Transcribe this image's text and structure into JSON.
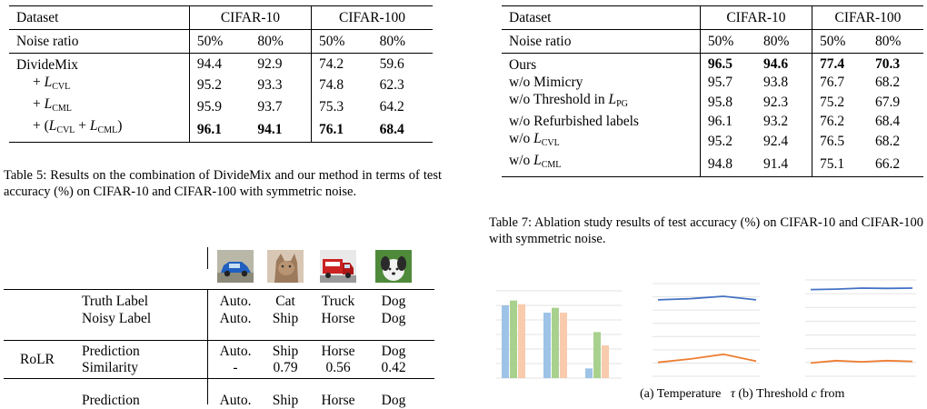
{
  "table5": {
    "h_dataset": "Dataset",
    "h_c10": "CIFAR-10",
    "h_c100": "CIFAR-100",
    "noise_label": "Noise ratio",
    "n1": "50%",
    "n2": "80%",
    "n3": "50%",
    "n4": "80%",
    "rows": [
      {
        "label": "DivideMix",
        "v": [
          "94.4",
          "92.9",
          "74.2",
          "59.6"
        ]
      },
      {
        "label_prefix": "+ ",
        "label_sym": "L",
        "label_sub": "CVL",
        "v": [
          "95.2",
          "93.3",
          "74.8",
          "62.3"
        ]
      },
      {
        "label_prefix": "+ ",
        "label_sym": "L",
        "label_sub": "CML",
        "v": [
          "95.9",
          "93.7",
          "75.3",
          "64.2"
        ]
      },
      {
        "label_prefix": "+ (",
        "label_sym": "L",
        "label_sub": "CVL",
        "label_mid": " + ",
        "label_sym2": "L",
        "label_sub2": "CML",
        "label_suffix": ")",
        "v": [
          "96.1",
          "94.1",
          "76.1",
          "68.4"
        ]
      }
    ],
    "caption": "Table 5: Results on the combination of DivideMix and our method in terms of test accuracy (%) on CIFAR-10 and CIFAR-100 with symmetric noise."
  },
  "table6": {
    "truth_label": "Truth Label",
    "noisy_label": "Noisy Label",
    "truth": [
      "Auto.",
      "Cat",
      "Truck",
      "Dog"
    ],
    "noisy": [
      "Auto.",
      "Ship",
      "Horse",
      "Dog"
    ],
    "rolr": "RoLR",
    "prediction": "Prediction",
    "similarity": "Similarity",
    "pred": [
      "Auto.",
      "Ship",
      "Horse",
      "Dog"
    ],
    "sim": [
      "-",
      "0.79",
      "0.56",
      "0.42"
    ],
    "prediction2": "Prediction",
    "pred2": [
      "Auto.",
      "Ship",
      "Horse",
      "Dog"
    ]
  },
  "table7": {
    "h_dataset": "Dataset",
    "h_c10": "CIFAR-10",
    "h_c100": "CIFAR-100",
    "noise_label": "Noise ratio",
    "n1": "50%",
    "n2": "80%",
    "n3": "50%",
    "n4": "80%",
    "rows": [
      {
        "label": "Ours",
        "v": [
          "96.5",
          "94.6",
          "77.4",
          "70.3"
        ]
      },
      {
        "label": "w/o Mimicry",
        "v": [
          "95.7",
          "93.8",
          "76.7",
          "68.2"
        ]
      },
      {
        "label": "w/o Threshold in ",
        "label_sym": "L",
        "label_sub": "PG",
        "v": [
          "95.8",
          "92.3",
          "75.2",
          "67.9"
        ]
      },
      {
        "label": "w/o Refurbished labels",
        "v": [
          "96.1",
          "93.2",
          "76.2",
          "68.4"
        ]
      },
      {
        "label": "w/o ",
        "label_sym": "L",
        "label_sub": "CVL",
        "v": [
          "95.2",
          "92.4",
          "76.5",
          "68.2"
        ]
      },
      {
        "label": "w/o ",
        "label_sym": "L",
        "label_sub": "CML",
        "v": [
          "94.8",
          "91.4",
          "75.1",
          "66.2"
        ]
      }
    ],
    "caption": "Table 7: Ablation study results of test accuracy (%) on CIFAR-10 and CIFAR-100 with symmetric noise."
  },
  "fig_caption_a": "(a)  Temperature",
  "fig_caption_b_sym": "τ",
  "fig_caption_b": "(b) Threshold",
  "fig_caption_c_sym": "c",
  "fig_caption_c": "from",
  "chart_data": [
    {
      "type": "bar",
      "series": [
        {
          "values": [
            3,
            2.7,
            0.4
          ],
          "color": "#9dc3e6"
        },
        {
          "values": [
            3.2,
            2.9,
            1.9
          ],
          "color": "#a9d18e"
        },
        {
          "values": [
            3.05,
            2.7,
            1.35
          ],
          "color": "#f8cbad"
        }
      ],
      "ylim": [
        0,
        3.6
      ]
    },
    {
      "type": "line",
      "series": [
        {
          "values": [
            3.3,
            3.35,
            3.45,
            3.3
          ],
          "color": "#4472c4"
        },
        {
          "values": [
            0.6,
            0.75,
            0.95,
            0.65
          ],
          "color": "#ed7d31"
        }
      ],
      "ylim": [
        0,
        4
      ]
    },
    {
      "type": "line",
      "series": [
        {
          "values": [
            3.6,
            3.62,
            3.66,
            3.65,
            3.66
          ],
          "color": "#4472c4"
        },
        {
          "values": [
            0.55,
            0.65,
            0.6,
            0.65,
            0.62
          ],
          "color": "#ed7d31"
        }
      ],
      "ylim": [
        0,
        4
      ]
    }
  ]
}
